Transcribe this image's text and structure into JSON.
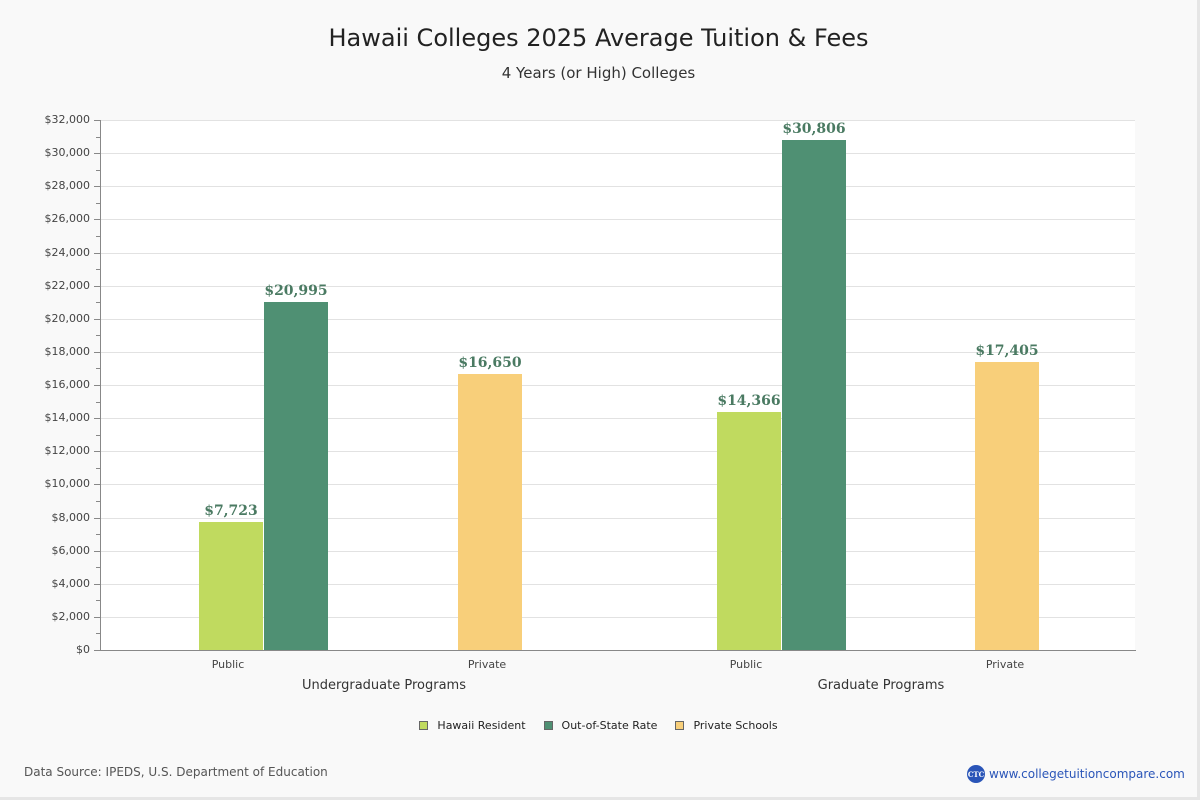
{
  "header": {
    "title": "Hawaii Colleges 2025 Average Tuition & Fees",
    "subtitle": "4 Years (or High)  Colleges"
  },
  "yaxis": {
    "ticks": [
      "$0",
      "$2,000",
      "$4,000",
      "$6,000",
      "$8,000",
      "$10,000",
      "$12,000",
      "$14,000",
      "$16,000",
      "$18,000",
      "$20,000",
      "$22,000",
      "$24,000",
      "$26,000",
      "$28,000",
      "$30,000",
      "$32,000"
    ]
  },
  "xaxis": {
    "categories": [
      "Public",
      "Private",
      "Public",
      "Private"
    ],
    "groups": [
      "Undergraduate Programs",
      "Graduate Programs"
    ]
  },
  "bars": {
    "ug_public_resident": "$7,723",
    "ug_public_oos": "$20,995",
    "ug_private": "$16,650",
    "grad_public_resident": "$14,366",
    "grad_public_oos": "$30,806",
    "grad_private": "$17,405"
  },
  "legend": {
    "items": [
      {
        "label": "Hawaii Resident",
        "color": "#c0da5f"
      },
      {
        "label": "Out-of-State Rate",
        "color": "#4f9073"
      },
      {
        "label": "Private Schools",
        "color": "#f8cf7a"
      }
    ]
  },
  "footer": {
    "source": "Data Source: IPEDS, U.S. Department of Education",
    "brand_logo": "CTC",
    "brand_url": "www.collegetuitioncompare.com"
  },
  "colors": {
    "resident": "#c0da5f",
    "out_of_state": "#4f9073",
    "private": "#f8cf7a",
    "value_label": "#4a7a62"
  },
  "chart_data": {
    "type": "bar",
    "title": "Hawaii Colleges 2025 Average Tuition & Fees",
    "subtitle": "4 Years (or High)  Colleges",
    "xlabel": "",
    "ylabel": "",
    "ylim": [
      0,
      32000
    ],
    "y_tick_step": 2000,
    "grid": true,
    "legend_position": "bottom",
    "groups": [
      "Undergraduate Programs",
      "Graduate Programs"
    ],
    "categories": [
      "Undergraduate Programs - Public",
      "Undergraduate Programs - Private",
      "Graduate Programs - Public",
      "Graduate Programs - Private"
    ],
    "series": [
      {
        "name": "Hawaii Resident",
        "color": "#c0da5f",
        "values": [
          7723,
          null,
          14366,
          null
        ]
      },
      {
        "name": "Out-of-State Rate",
        "color": "#4f9073",
        "values": [
          20995,
          null,
          30806,
          null
        ]
      },
      {
        "name": "Private Schools",
        "color": "#f8cf7a",
        "values": [
          null,
          16650,
          null,
          17405
        ]
      }
    ],
    "annotations": [
      "$7,723",
      "$20,995",
      "$16,650",
      "$14,366",
      "$30,806",
      "$17,405"
    ],
    "source": "Data Source: IPEDS, U.S. Department of Education"
  }
}
